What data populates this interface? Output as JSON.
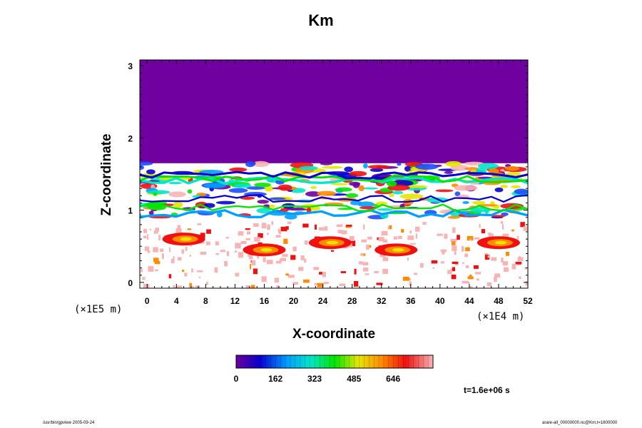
{
  "chart_data": {
    "type": "heatmap",
    "title": "Km",
    "xlabel": "X-coordinate",
    "ylabel": "Z-coordinate",
    "x_unit": "(×1E4 m)",
    "y_unit": "(×1E5 m)",
    "xlim": [
      -1,
      52
    ],
    "ylim": [
      -0.08,
      3.08
    ],
    "x_ticks": [
      0,
      4,
      8,
      12,
      16,
      20,
      24,
      28,
      32,
      36,
      40,
      44,
      48,
      52
    ],
    "y_ticks": [
      0,
      1,
      2,
      3
    ],
    "colorbar": {
      "ticks": [
        0,
        162,
        323,
        485,
        646
      ],
      "range": [
        0,
        810
      ]
    },
    "regions": [
      {
        "name": "upper",
        "z_range": [
          1.65,
          3.08
        ],
        "value": 0
      },
      {
        "name": "mid-layer",
        "z_range": [
          0.9,
          1.65
        ],
        "value_range": [
          0,
          810
        ]
      },
      {
        "name": "lower",
        "z_range": [
          -0.08,
          0.85
        ],
        "value_range": [
          0,
          810
        ]
      }
    ],
    "colors": {
      "upper_region": "#7000A0",
      "background": "#ffffff"
    }
  },
  "time_label": "t=1.6e+06 s",
  "footer_left": "/usr/bin/gpview 2005-09-24",
  "footer_right": "arare-all_00000000.nc@Km,t=1600000"
}
